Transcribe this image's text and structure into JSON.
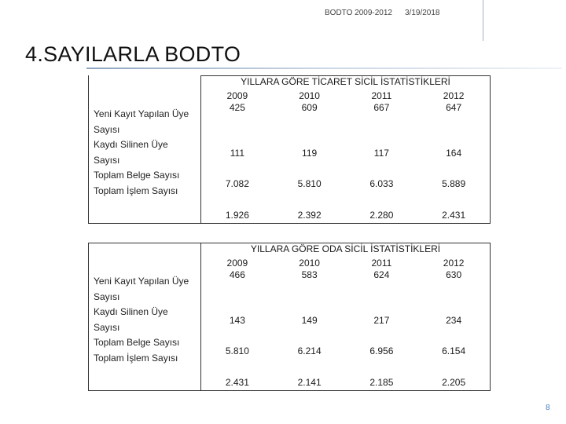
{
  "header": {
    "doc_title": "BODTO 2009-2012",
    "date": "3/19/2018"
  },
  "slide": {
    "title": "4.SAYILARLA BODTO",
    "page_number": "8"
  },
  "tables": [
    {
      "caption": "YILLARA GÖRE TİCARET SİCİL İSTATİSTİKLERİ",
      "years": [
        "2009",
        "2010",
        "2011",
        "2012"
      ],
      "rows": [
        {
          "label": "Yeni Kayıt Yapılan Üye Sayısı",
          "values": [
            "425",
            "609",
            "667",
            "647"
          ]
        },
        {
          "label": "Kaydı Silinen Üye Sayısı",
          "values": [
            "111",
            "119",
            "117",
            "164"
          ]
        },
        {
          "label": "Toplam Belge Sayısı",
          "values": [
            "7.082",
            "5.810",
            "6.033",
            "5.889"
          ]
        },
        {
          "label": "Toplam İşlem Sayısı",
          "values": [
            "1.926",
            "2.392",
            "2.280",
            "2.431"
          ]
        }
      ]
    },
    {
      "caption": "YILLARA GÖRE ODA SİCİL İSTATİSTİKLERİ",
      "years": [
        "2009",
        "2010",
        "2011",
        "2012"
      ],
      "rows": [
        {
          "label": "Yeni Kayıt Yapılan Üye Sayısı",
          "values": [
            "466",
            "583",
            "624",
            "630"
          ]
        },
        {
          "label": "Kaydı Silinen Üye Sayısı",
          "values": [
            "143",
            "149",
            "217",
            "234"
          ]
        },
        {
          "label": "Toplam Belge Sayısı",
          "values": [
            "5.810",
            "6.214",
            "6.956",
            "6.154"
          ]
        },
        {
          "label": "Toplam İşlem Sayısı",
          "values": [
            "2.431",
            "2.141",
            "2.185",
            "2.205"
          ]
        }
      ]
    }
  ]
}
